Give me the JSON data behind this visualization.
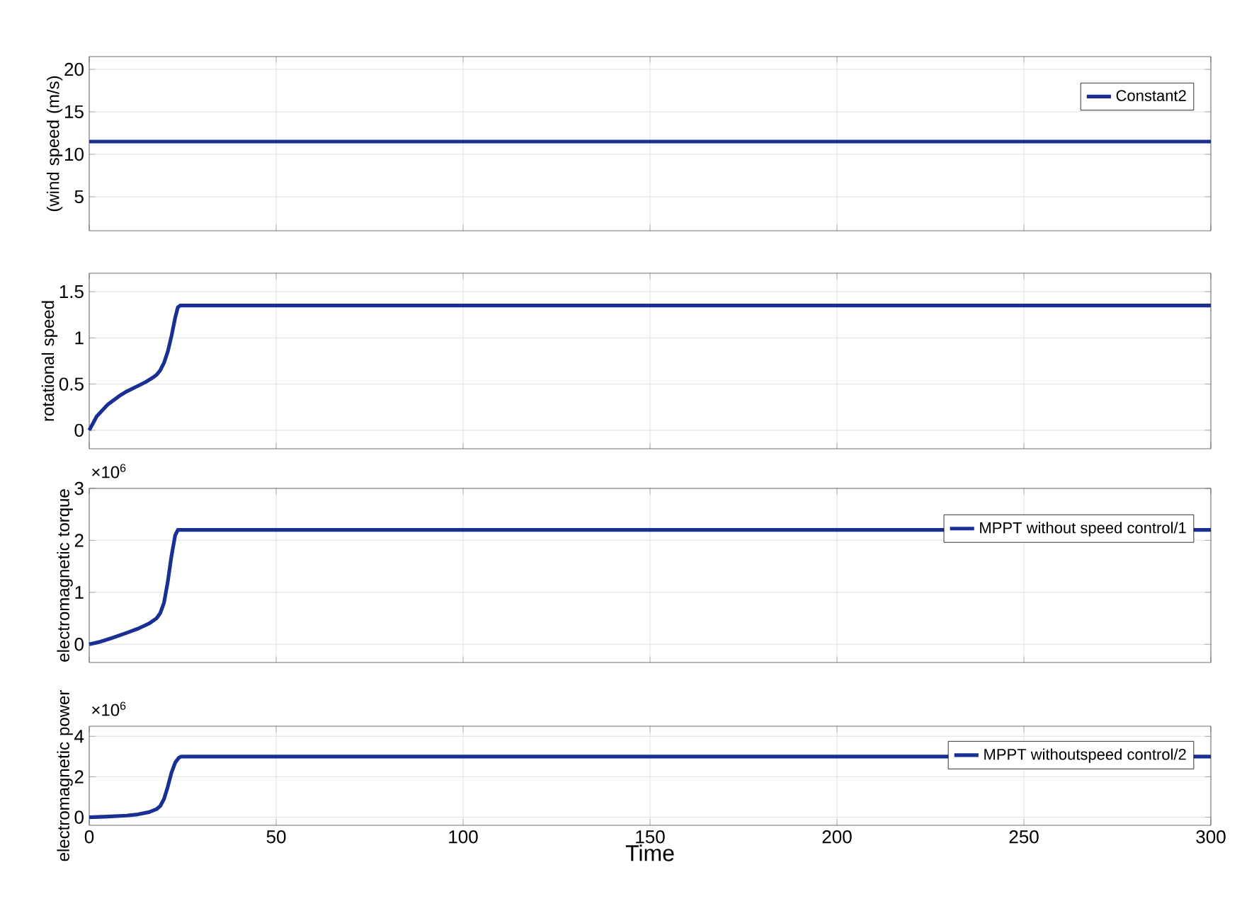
{
  "chart_data": [
    {
      "type": "line",
      "ylabel": "(wind speed (m/s)",
      "x": [
        0,
        300
      ],
      "series": [
        {
          "name": "Constant2",
          "color": "#1a2f94",
          "values": [
            11.5,
            11.5
          ]
        }
      ],
      "xlim": [
        0,
        300
      ],
      "xticks": [
        0,
        50,
        100,
        150,
        200,
        250,
        300
      ],
      "ylim": [
        1,
        21.5
      ],
      "yticks": [
        5,
        10,
        15,
        20
      ],
      "grid": true,
      "legend": "top right",
      "tick_labels": "y"
    },
    {
      "type": "line",
      "ylabel": "rotational speed",
      "x": [
        0,
        2,
        5,
        8,
        10,
        13,
        15,
        17,
        18,
        19,
        20,
        21,
        22,
        23,
        23.7,
        24.3,
        300
      ],
      "series": [
        {
          "color": "#1a2f94",
          "values": [
            0,
            0.15,
            0.28,
            0.37,
            0.42,
            0.48,
            0.52,
            0.57,
            0.6,
            0.65,
            0.73,
            0.85,
            1.02,
            1.22,
            1.33,
            1.35,
            1.35
          ]
        }
      ],
      "xlim": [
        0,
        300
      ],
      "xticks": [
        0,
        50,
        100,
        150,
        200,
        250,
        300
      ],
      "ylim": [
        -0.2,
        1.7
      ],
      "yticks": [
        0,
        0.5,
        1,
        1.5
      ],
      "grid": true,
      "tick_labels": "y"
    },
    {
      "type": "line",
      "ylabel": "electromagnetic torque",
      "annotations": [
        "×10$^{6}$"
      ],
      "x": [
        0,
        3,
        6,
        10,
        13,
        16,
        18,
        19,
        20,
        21,
        22,
        23,
        23.7,
        24.3,
        300
      ],
      "series": [
        {
          "name": "MPPT without speed control/1",
          "color": "#1a2f94",
          "values": [
            0,
            0.05,
            0.12,
            0.22,
            0.3,
            0.4,
            0.5,
            0.6,
            0.8,
            1.2,
            1.7,
            2.1,
            2.2,
            2.2,
            2.2
          ]
        }
      ],
      "xlim": [
        0,
        300
      ],
      "xticks": [
        0,
        50,
        100,
        150,
        200,
        250,
        300
      ],
      "ylim": [
        -0.35,
        3
      ],
      "yticks": [
        0,
        1,
        2,
        3
      ],
      "grid": true,
      "legend": "top right",
      "tick_labels": "y"
    },
    {
      "type": "line",
      "ylabel": "electromagnetic power",
      "xlabel": "Time",
      "annotations": [
        "×10$^{6}$"
      ],
      "x": [
        0,
        5,
        10,
        13,
        16,
        18,
        19,
        20,
        21,
        22,
        23,
        24,
        24.6,
        25.2,
        300
      ],
      "series": [
        {
          "name": "MPPT withoutspeed control/2",
          "color": "#1a2f94",
          "values": [
            0,
            0.03,
            0.08,
            0.14,
            0.25,
            0.4,
            0.55,
            0.9,
            1.5,
            2.2,
            2.7,
            2.95,
            3,
            3,
            3
          ]
        }
      ],
      "xlim": [
        0,
        300
      ],
      "xticks": [
        0,
        50,
        100,
        150,
        200,
        250,
        300
      ],
      "ylim": [
        -0.4,
        4.5
      ],
      "yticks": [
        0,
        2,
        4
      ],
      "grid": true,
      "legend": "top right"
    }
  ]
}
